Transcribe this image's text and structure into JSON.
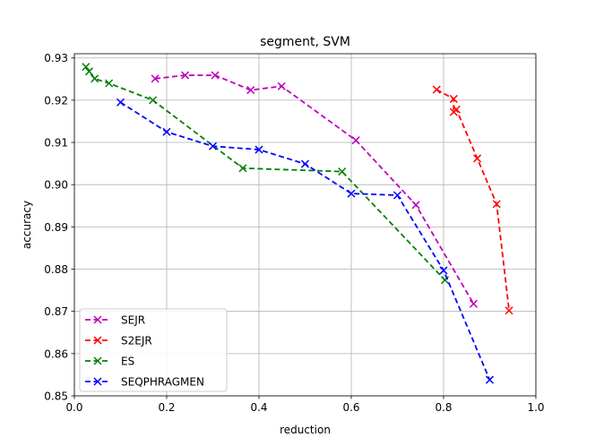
{
  "chart_data": {
    "type": "line",
    "title": "segment, SVM",
    "xlabel": "reduction",
    "ylabel": "accuracy",
    "xlim": [
      0.0,
      1.0
    ],
    "ylim": [
      0.85,
      0.931
    ],
    "xticks": [
      "0.0",
      "0.2",
      "0.4",
      "0.6",
      "0.8",
      "1.0"
    ],
    "yticks": [
      "0.85",
      "0.86",
      "0.87",
      "0.88",
      "0.89",
      "0.90",
      "0.91",
      "0.92",
      "0.93"
    ],
    "grid": true,
    "legend_position": "lower-left",
    "series": [
      {
        "name": "SEJR",
        "color": "#bf00bf",
        "x": [
          0.175,
          0.24,
          0.305,
          0.382,
          0.449,
          0.61,
          0.74,
          0.865
        ],
        "y": [
          0.9251,
          0.9259,
          0.9259,
          0.9224,
          0.9233,
          0.9105,
          0.8952,
          0.8718
        ]
      },
      {
        "name": "S2EJR",
        "color": "#ff0000",
        "x": [
          0.785,
          0.822,
          0.822,
          0.828,
          0.873,
          0.915,
          0.942
        ],
        "y": [
          0.9225,
          0.9203,
          0.9172,
          0.9178,
          0.9062,
          0.8954,
          0.8702
        ]
      },
      {
        "name": "ES",
        "color": "#008000",
        "x": [
          0.025,
          0.032,
          0.044,
          0.075,
          0.17,
          0.365,
          0.58,
          0.803
        ],
        "y": [
          0.9279,
          0.9268,
          0.9251,
          0.924,
          0.92,
          0.9039,
          0.9031,
          0.8774
        ]
      },
      {
        "name": "SEQPHRAGMEN",
        "color": "#0000ff",
        "x": [
          0.1,
          0.2,
          0.3,
          0.4,
          0.5,
          0.6,
          0.7,
          0.8,
          0.9
        ],
        "y": [
          0.9195,
          0.9125,
          0.9091,
          0.9083,
          0.9049,
          0.8979,
          0.8975,
          0.8797,
          0.8538
        ]
      }
    ]
  }
}
